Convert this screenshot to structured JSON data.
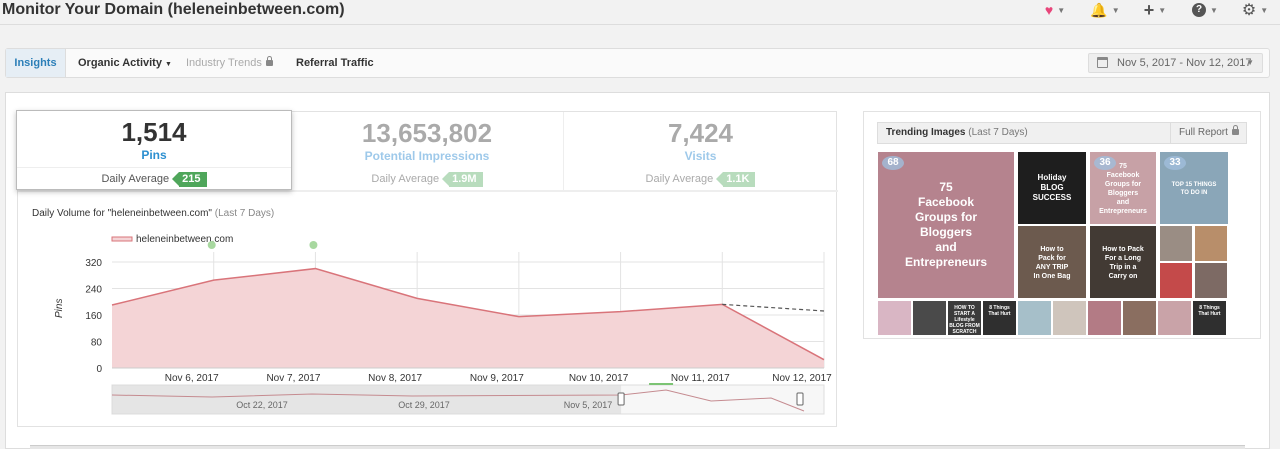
{
  "header": {
    "title": "Monitor Your Domain (heleneinbetween.com)",
    "icons": [
      "heart-icon",
      "bell-icon",
      "plus-icon",
      "help-icon",
      "gear-icon"
    ]
  },
  "tabs": [
    {
      "label": "Insights",
      "active": true
    },
    {
      "label": "Organic Activity"
    },
    {
      "label": "Industry Trends",
      "locked": true
    },
    {
      "label": "Referral Traffic"
    }
  ],
  "date_range": "Nov 5, 2017 - Nov 12, 2017",
  "stats": [
    {
      "value": "1,514",
      "label": "Pins",
      "avg_label": "Daily Average",
      "avg": "215",
      "color": "#2c8fd0"
    },
    {
      "value": "13,653,802",
      "label": "Potential Impressions",
      "avg_label": "Daily Average",
      "avg": "1.9M",
      "color": "#9ec9ea"
    },
    {
      "value": "7,424",
      "label": "Visits",
      "avg_label": "Daily Average",
      "avg": "1.1K",
      "color": "#9ec9ea"
    }
  ],
  "chart_title": "Daily Volume for \"heleneinbetween.com\"",
  "chart_title_suffix": "(Last 7 Days)",
  "chart_data": {
    "type": "area",
    "series": [
      {
        "name": "heleneinbetween.com",
        "values": [
          190,
          265,
          300,
          210,
          155,
          170,
          192,
          25
        ]
      }
    ],
    "x": [
      "Nov 5, 2017",
      "Nov 6, 2017",
      "Nov 7, 2017",
      "Nov 8, 2017",
      "Nov 9, 2017",
      "Nov 10, 2017",
      "Nov 11, 2017",
      "Nov 12, 2017"
    ],
    "xtick_labels": [
      "Nov 6, 2017",
      "Nov 7, 2017",
      "Nov 8, 2017",
      "Nov 9, 2017",
      "Nov 10, 2017",
      "Nov 11, 2017",
      "Nov 12, 2017"
    ],
    "yticks": [
      0,
      80,
      160,
      240,
      320
    ],
    "ylim": [
      0,
      350
    ],
    "ylabel": "Pins",
    "forecast": {
      "from": "Nov 11, 2017",
      "values": [
        192,
        172
      ]
    },
    "event_markers": [
      "Nov 6, 2017",
      "Nov 7, 2017"
    ],
    "navigator_labels": [
      "Oct 22, 2017",
      "Oct 29, 2017",
      "Nov 5, 2017"
    ],
    "colors": {
      "line": "#d9747a",
      "fill": "#f4d4d6",
      "marker": "#a8d8a0"
    }
  },
  "trending": {
    "title": "Trending Images",
    "suffix": "(Last 7 Days)",
    "full_report": "Full Report",
    "tiles": [
      {
        "badge": "68",
        "lines": [
          "75",
          "Facebook",
          "Groups for",
          "Bloggers",
          "and",
          "Entrepreneurs"
        ],
        "bg": "#b5838e"
      },
      {
        "lines": [
          "Holiday",
          "BLOG",
          "SUCCESS"
        ],
        "bg": "#1e1e1e"
      },
      {
        "badge": "36",
        "lines": [
          "75",
          "Facebook",
          "Groups for",
          "Bloggers",
          "and",
          "Entrepreneurs"
        ],
        "bg": "#c7a1a6"
      },
      {
        "badge": "33",
        "lines": [
          "TOP 15 THINGS",
          "TO DO IN"
        ],
        "bg": "#8aa6b8"
      },
      {
        "lines": [
          "How to",
          "Pack for",
          "ANY TRIP",
          "In One Bag"
        ],
        "bg": "#6c5a4e"
      },
      {
        "lines": [
          "How to Pack",
          "For a Long",
          "Trip in a",
          "Carry on"
        ],
        "bg": "#423a34"
      },
      {
        "lines": [],
        "bg": "#9a8d84"
      },
      {
        "lines": [],
        "bg": "#b88e6a"
      },
      {
        "lines": [],
        "bg": "#c44a4a"
      },
      {
        "lines": [],
        "bg": "#7d6a64"
      },
      {
        "lines": [],
        "bg": "#c7b8a6"
      }
    ],
    "mini_tiles": [
      {
        "lines": [],
        "bg": "#d9b6c4"
      },
      {
        "lines": [],
        "bg": "#4a4a4a"
      },
      {
        "lines": [
          "HOW TO",
          "START A",
          "Lifestyle",
          "BLOG FROM",
          "SCRATCH"
        ],
        "bg": "#3b3b3b"
      },
      {
        "lines": [
          "8 Things",
          "That Hurt"
        ],
        "bg": "#2f2f2f"
      },
      {
        "lines": [],
        "bg": "#a6bfc9"
      },
      {
        "lines": [],
        "bg": "#cfc5bc"
      },
      {
        "lines": [],
        "bg": "#b37b85"
      },
      {
        "lines": [],
        "bg": "#8a6e60"
      },
      {
        "lines": [],
        "bg": "#c9a3a8"
      },
      {
        "lines": [
          "8 Things",
          "That Hurt"
        ],
        "bg": "#2f2f2f"
      }
    ]
  }
}
